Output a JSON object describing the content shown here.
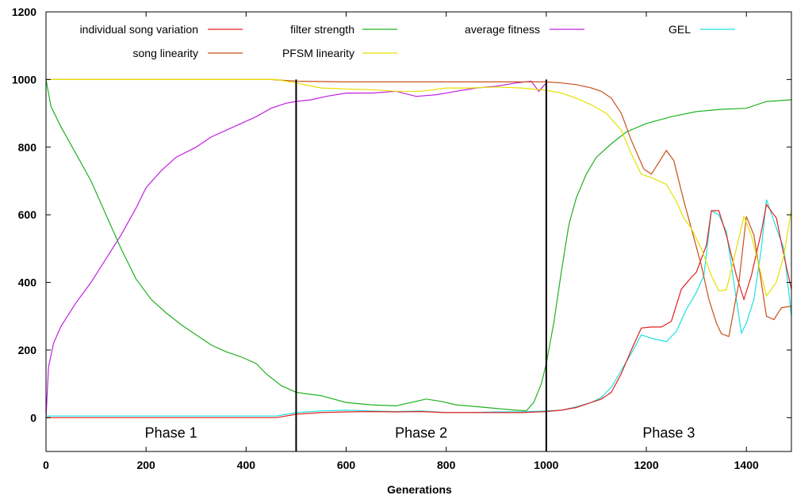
{
  "chart_data": {
    "type": "line",
    "title": "",
    "xlabel": "Generations",
    "ylabel": "",
    "xlim": [
      0,
      1490
    ],
    "ylim": [
      -100,
      1200
    ],
    "x_ticks": [
      0,
      200,
      400,
      600,
      800,
      1000,
      1200,
      1400
    ],
    "y_ticks": [
      0,
      200,
      400,
      600,
      800,
      1000,
      1200
    ],
    "grid": false,
    "legend_position": "top",
    "phase_boundaries": [
      500,
      1000
    ],
    "phases": [
      {
        "label": "Phase 1",
        "x": 250
      },
      {
        "label": "Phase 2",
        "x": 750
      },
      {
        "label": "Phase 3",
        "x": 1245
      }
    ],
    "series": [
      {
        "name": "individual song variation",
        "color": "#e02020",
        "points": [
          [
            0,
            0
          ],
          [
            100,
            0
          ],
          [
            200,
            0
          ],
          [
            300,
            0
          ],
          [
            400,
            0
          ],
          [
            460,
            0
          ],
          [
            500,
            10
          ],
          [
            550,
            15
          ],
          [
            600,
            17
          ],
          [
            650,
            18
          ],
          [
            700,
            17
          ],
          [
            750,
            18
          ],
          [
            800,
            15
          ],
          [
            850,
            15
          ],
          [
            900,
            15
          ],
          [
            950,
            15
          ],
          [
            1000,
            18
          ],
          [
            1030,
            22
          ],
          [
            1060,
            30
          ],
          [
            1090,
            45
          ],
          [
            1110,
            55
          ],
          [
            1130,
            75
          ],
          [
            1150,
            130
          ],
          [
            1170,
            200
          ],
          [
            1190,
            265
          ],
          [
            1210,
            268
          ],
          [
            1230,
            268
          ],
          [
            1250,
            285
          ],
          [
            1270,
            380
          ],
          [
            1290,
            415
          ],
          [
            1300,
            430
          ],
          [
            1320,
            510
          ],
          [
            1330,
            612
          ],
          [
            1345,
            612
          ],
          [
            1360,
            540
          ],
          [
            1380,
            420
          ],
          [
            1395,
            350
          ],
          [
            1410,
            420
          ],
          [
            1430,
            550
          ],
          [
            1440,
            630
          ],
          [
            1460,
            590
          ],
          [
            1475,
            480
          ],
          [
            1490,
            380
          ]
        ]
      },
      {
        "name": "song linearity",
        "color": "#c8501a",
        "points": [
          [
            0,
            1000
          ],
          [
            100,
            1000
          ],
          [
            200,
            1000
          ],
          [
            300,
            1000
          ],
          [
            400,
            1000
          ],
          [
            450,
            1000
          ],
          [
            500,
            995
          ],
          [
            600,
            993
          ],
          [
            700,
            993
          ],
          [
            800,
            993
          ],
          [
            900,
            993
          ],
          [
            1000,
            993
          ],
          [
            1030,
            990
          ],
          [
            1060,
            985
          ],
          [
            1090,
            975
          ],
          [
            1110,
            965
          ],
          [
            1130,
            945
          ],
          [
            1150,
            900
          ],
          [
            1170,
            820
          ],
          [
            1195,
            735
          ],
          [
            1210,
            720
          ],
          [
            1240,
            790
          ],
          [
            1255,
            760
          ],
          [
            1275,
            640
          ],
          [
            1290,
            560
          ],
          [
            1310,
            450
          ],
          [
            1325,
            350
          ],
          [
            1340,
            280
          ],
          [
            1350,
            248
          ],
          [
            1365,
            240
          ],
          [
            1385,
            400
          ],
          [
            1400,
            595
          ],
          [
            1415,
            540
          ],
          [
            1430,
            400
          ],
          [
            1440,
            300
          ],
          [
            1455,
            290
          ],
          [
            1470,
            325
          ],
          [
            1490,
            330
          ]
        ]
      },
      {
        "name": "filter strength",
        "color": "#20b020",
        "points": [
          [
            0,
            1000
          ],
          [
            10,
            920
          ],
          [
            30,
            860
          ],
          [
            60,
            780
          ],
          [
            90,
            700
          ],
          [
            120,
            600
          ],
          [
            150,
            500
          ],
          [
            180,
            410
          ],
          [
            210,
            350
          ],
          [
            240,
            310
          ],
          [
            270,
            275
          ],
          [
            300,
            245
          ],
          [
            330,
            215
          ],
          [
            360,
            195
          ],
          [
            390,
            180
          ],
          [
            420,
            160
          ],
          [
            440,
            130
          ],
          [
            470,
            95
          ],
          [
            500,
            75
          ],
          [
            550,
            65
          ],
          [
            600,
            45
          ],
          [
            650,
            38
          ],
          [
            700,
            35
          ],
          [
            730,
            45
          ],
          [
            760,
            55
          ],
          [
            790,
            48
          ],
          [
            820,
            38
          ],
          [
            880,
            30
          ],
          [
            940,
            22
          ],
          [
            960,
            20
          ],
          [
            975,
            45
          ],
          [
            990,
            100
          ],
          [
            1000,
            160
          ],
          [
            1015,
            280
          ],
          [
            1030,
            430
          ],
          [
            1045,
            570
          ],
          [
            1060,
            650
          ],
          [
            1080,
            720
          ],
          [
            1100,
            770
          ],
          [
            1130,
            810
          ],
          [
            1160,
            845
          ],
          [
            1200,
            870
          ],
          [
            1250,
            890
          ],
          [
            1300,
            905
          ],
          [
            1350,
            912
          ],
          [
            1400,
            915
          ],
          [
            1440,
            935
          ],
          [
            1490,
            940
          ]
        ]
      },
      {
        "name": "PFSM linearity",
        "color": "#e6e000",
        "points": [
          [
            0,
            1000
          ],
          [
            100,
            1000
          ],
          [
            200,
            1000
          ],
          [
            300,
            1000
          ],
          [
            400,
            1000
          ],
          [
            460,
            1000
          ],
          [
            500,
            990
          ],
          [
            550,
            975
          ],
          [
            600,
            972
          ],
          [
            650,
            970
          ],
          [
            700,
            965
          ],
          [
            750,
            965
          ],
          [
            800,
            975
          ],
          [
            850,
            975
          ],
          [
            900,
            978
          ],
          [
            950,
            975
          ],
          [
            1000,
            968
          ],
          [
            1030,
            960
          ],
          [
            1060,
            945
          ],
          [
            1090,
            925
          ],
          [
            1120,
            900
          ],
          [
            1150,
            850
          ],
          [
            1170,
            780
          ],
          [
            1190,
            720
          ],
          [
            1210,
            710
          ],
          [
            1240,
            690
          ],
          [
            1260,
            640
          ],
          [
            1275,
            590
          ],
          [
            1290,
            560
          ],
          [
            1310,
            500
          ],
          [
            1330,
            420
          ],
          [
            1345,
            375
          ],
          [
            1360,
            378
          ],
          [
            1380,
            500
          ],
          [
            1395,
            595
          ],
          [
            1410,
            540
          ],
          [
            1425,
            450
          ],
          [
            1440,
            360
          ],
          [
            1460,
            400
          ],
          [
            1475,
            480
          ],
          [
            1490,
            615
          ]
        ]
      },
      {
        "name": "average fitness",
        "color": "#c020e0",
        "points": [
          [
            0,
            0
          ],
          [
            5,
            150
          ],
          [
            15,
            220
          ],
          [
            30,
            270
          ],
          [
            60,
            340
          ],
          [
            90,
            400
          ],
          [
            120,
            470
          ],
          [
            150,
            540
          ],
          [
            180,
            620
          ],
          [
            200,
            680
          ],
          [
            230,
            730
          ],
          [
            260,
            770
          ],
          [
            300,
            800
          ],
          [
            330,
            830
          ],
          [
            360,
            850
          ],
          [
            390,
            870
          ],
          [
            420,
            890
          ],
          [
            450,
            915
          ],
          [
            480,
            930
          ],
          [
            500,
            935
          ],
          [
            530,
            940
          ],
          [
            560,
            950
          ],
          [
            600,
            960
          ],
          [
            650,
            960
          ],
          [
            700,
            965
          ],
          [
            740,
            950
          ],
          [
            780,
            955
          ],
          [
            820,
            965
          ],
          [
            860,
            975
          ],
          [
            900,
            980
          ],
          [
            940,
            990
          ],
          [
            970,
            995
          ],
          [
            985,
            965
          ],
          [
            1000,
            990
          ]
        ]
      },
      {
        "name": "GEL",
        "color": "#20e0e0",
        "points": [
          [
            0,
            5
          ],
          [
            100,
            5
          ],
          [
            200,
            5
          ],
          [
            300,
            5
          ],
          [
            400,
            5
          ],
          [
            460,
            5
          ],
          [
            500,
            15
          ],
          [
            550,
            20
          ],
          [
            600,
            22
          ],
          [
            650,
            20
          ],
          [
            700,
            18
          ],
          [
            750,
            20
          ],
          [
            800,
            15
          ],
          [
            850,
            15
          ],
          [
            900,
            17
          ],
          [
            950,
            17
          ],
          [
            1000,
            20
          ],
          [
            1030,
            22
          ],
          [
            1060,
            32
          ],
          [
            1090,
            45
          ],
          [
            1110,
            60
          ],
          [
            1130,
            90
          ],
          [
            1150,
            140
          ],
          [
            1170,
            190
          ],
          [
            1190,
            245
          ],
          [
            1210,
            235
          ],
          [
            1240,
            225
          ],
          [
            1260,
            255
          ],
          [
            1280,
            320
          ],
          [
            1300,
            370
          ],
          [
            1315,
            420
          ],
          [
            1330,
            612
          ],
          [
            1345,
            600
          ],
          [
            1360,
            550
          ],
          [
            1375,
            400
          ],
          [
            1390,
            250
          ],
          [
            1400,
            280
          ],
          [
            1415,
            350
          ],
          [
            1430,
            500
          ],
          [
            1440,
            645
          ],
          [
            1460,
            560
          ],
          [
            1475,
            500
          ],
          [
            1490,
            300
          ]
        ]
      }
    ]
  }
}
